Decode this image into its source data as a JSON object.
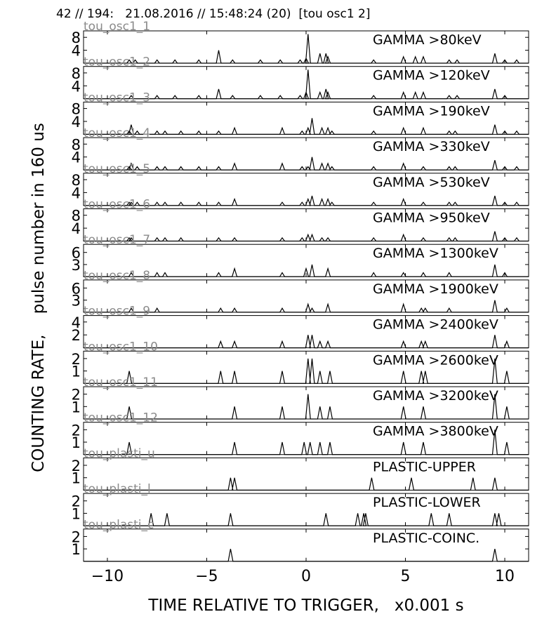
{
  "header": "42 // 194:   21.08.2016 // 15:48:24 (20)  [tou osc1 2]",
  "chart_data": {
    "type": "line",
    "xlabel": "TIME RELATIVE TO TRIGGER,   x0.001 s",
    "ylabel": "COUNTING RATE,    pulse number in 160 us",
    "xlim": [
      -11.2,
      11.2
    ],
    "xticks": [
      -10,
      -5,
      0,
      5,
      10
    ],
    "xtick_labels": [
      "−10",
      "−5",
      "0",
      "5",
      "10"
    ],
    "grid": false,
    "panels": [
      {
        "channel": "tou_osc1_1",
        "title": "GAMMA >80keV",
        "ylim": [
          0,
          10
        ],
        "yticks": [
          4,
          8
        ],
        "spikes": [
          [
            -8.9,
            1
          ],
          [
            -8.6,
            1
          ],
          [
            -7.5,
            1
          ],
          [
            -6.6,
            1
          ],
          [
            -5.4,
            1
          ],
          [
            -4.4,
            4
          ],
          [
            -3.7,
            1
          ],
          [
            -2.3,
            1
          ],
          [
            -1.3,
            1
          ],
          [
            -0.3,
            1
          ],
          [
            0,
            1.5
          ],
          [
            0.1,
            9
          ],
          [
            0.7,
            3
          ],
          [
            1,
            3
          ],
          [
            1.1,
            2
          ],
          [
            3.4,
            1
          ],
          [
            4.9,
            2
          ],
          [
            5.5,
            2
          ],
          [
            5.9,
            2
          ],
          [
            7.2,
            1
          ],
          [
            7.6,
            1
          ],
          [
            9.5,
            3
          ],
          [
            10,
            1
          ],
          [
            10.6,
            1
          ]
        ]
      },
      {
        "channel": "tou_osc1_2",
        "title": "GAMMA >120keV",
        "ylim": [
          0,
          10
        ],
        "yticks": [
          4,
          8
        ],
        "spikes": [
          [
            -8.8,
            1
          ],
          [
            -7.5,
            1
          ],
          [
            -6.6,
            1
          ],
          [
            -5.4,
            1
          ],
          [
            -4.4,
            3
          ],
          [
            -3.7,
            1
          ],
          [
            -2.3,
            1
          ],
          [
            -1.3,
            1
          ],
          [
            -0.3,
            1
          ],
          [
            0,
            2
          ],
          [
            0.1,
            9
          ],
          [
            0.7,
            2
          ],
          [
            1,
            3
          ],
          [
            1.1,
            2
          ],
          [
            3.4,
            1
          ],
          [
            4.9,
            2
          ],
          [
            5.5,
            2
          ],
          [
            5.9,
            2
          ],
          [
            7.2,
            1
          ],
          [
            7.6,
            1
          ],
          [
            9.5,
            3
          ],
          [
            10,
            1
          ]
        ]
      },
      {
        "channel": "tou_osc1_3",
        "title": "GAMMA >190keV",
        "ylim": [
          0,
          10
        ],
        "yticks": [
          4,
          8
        ],
        "spikes": [
          [
            -8.9,
            1
          ],
          [
            -8.8,
            3
          ],
          [
            -8.5,
            1
          ],
          [
            -7.5,
            1
          ],
          [
            -7.1,
            1
          ],
          [
            -6.3,
            1
          ],
          [
            -5.4,
            1
          ],
          [
            -4.4,
            1
          ],
          [
            -3.6,
            2
          ],
          [
            -1.2,
            2
          ],
          [
            -0.2,
            1
          ],
          [
            0.1,
            2
          ],
          [
            0.3,
            5
          ],
          [
            0.8,
            2
          ],
          [
            1.1,
            2
          ],
          [
            1.3,
            1
          ],
          [
            3.4,
            1
          ],
          [
            4.9,
            2
          ],
          [
            5.9,
            2
          ],
          [
            7.2,
            1
          ],
          [
            7.5,
            1
          ],
          [
            9.5,
            3
          ],
          [
            10,
            1
          ],
          [
            10.6,
            1
          ]
        ]
      },
      {
        "channel": "tou_osc1_4",
        "title": "GAMMA >330keV",
        "ylim": [
          0,
          10
        ],
        "yticks": [
          4,
          8
        ],
        "spikes": [
          [
            -8.9,
            1
          ],
          [
            -8.8,
            2
          ],
          [
            -8.5,
            1
          ],
          [
            -7.5,
            1
          ],
          [
            -7.1,
            1
          ],
          [
            -6.3,
            1
          ],
          [
            -5.4,
            1
          ],
          [
            -4.4,
            1
          ],
          [
            -3.6,
            2
          ],
          [
            -1.2,
            2
          ],
          [
            -0.2,
            1
          ],
          [
            0.1,
            1
          ],
          [
            0.3,
            4
          ],
          [
            0.8,
            2
          ],
          [
            1.1,
            2
          ],
          [
            1.3,
            1
          ],
          [
            3.4,
            1
          ],
          [
            4.9,
            2
          ],
          [
            5.9,
            1
          ],
          [
            7.2,
            1
          ],
          [
            7.5,
            1
          ],
          [
            9.5,
            3
          ],
          [
            10,
            1
          ],
          [
            10.6,
            1
          ]
        ]
      },
      {
        "channel": "tou_osc1_5",
        "title": "GAMMA >530keV",
        "ylim": [
          0,
          10
        ],
        "yticks": [
          4,
          8
        ],
        "spikes": [
          [
            -8.9,
            1
          ],
          [
            -8.8,
            1
          ],
          [
            -8.5,
            1
          ],
          [
            -7.5,
            1
          ],
          [
            -7.1,
            1
          ],
          [
            -6.3,
            1
          ],
          [
            -5.4,
            1
          ],
          [
            -4.4,
            1
          ],
          [
            -3.6,
            2
          ],
          [
            -1.2,
            1
          ],
          [
            -0.2,
            1
          ],
          [
            0.1,
            2
          ],
          [
            0.3,
            3
          ],
          [
            0.8,
            2
          ],
          [
            1.1,
            2
          ],
          [
            1.3,
            1
          ],
          [
            3.4,
            1
          ],
          [
            4.9,
            2
          ],
          [
            5.9,
            1
          ],
          [
            7.2,
            1
          ],
          [
            7.5,
            1
          ],
          [
            9.5,
            3
          ],
          [
            10,
            1
          ],
          [
            10.6,
            1
          ]
        ]
      },
      {
        "channel": "tou_osc1_6",
        "title": "GAMMA >950keV",
        "ylim": [
          0,
          10
        ],
        "yticks": [
          4,
          8
        ],
        "spikes": [
          [
            -8.9,
            1
          ],
          [
            -8.8,
            1
          ],
          [
            -7.5,
            1
          ],
          [
            -7.1,
            1
          ],
          [
            -6.3,
            1
          ],
          [
            -4.4,
            1
          ],
          [
            -3.6,
            1
          ],
          [
            -1.2,
            1
          ],
          [
            -0.2,
            1
          ],
          [
            0.1,
            2
          ],
          [
            0.3,
            2
          ],
          [
            0.8,
            1
          ],
          [
            1.1,
            1
          ],
          [
            3.4,
            1
          ],
          [
            4.9,
            2
          ],
          [
            5.9,
            1
          ],
          [
            7.2,
            1
          ],
          [
            7.5,
            1
          ],
          [
            9.5,
            3
          ],
          [
            10,
            1
          ],
          [
            10.6,
            1
          ]
        ]
      },
      {
        "channel": "tou_osc1_7",
        "title": "GAMMA >1300keV",
        "ylim": [
          0,
          8
        ],
        "yticks": [
          3,
          6
        ],
        "spikes": [
          [
            -8.8,
            1
          ],
          [
            -7.5,
            1
          ],
          [
            -7.1,
            1
          ],
          [
            -4.4,
            1
          ],
          [
            -3.6,
            2
          ],
          [
            -1.2,
            1
          ],
          [
            0,
            2
          ],
          [
            0.3,
            3
          ],
          [
            1.1,
            2
          ],
          [
            3.4,
            1
          ],
          [
            4.9,
            1
          ],
          [
            5.9,
            1
          ],
          [
            7.2,
            1
          ],
          [
            9.5,
            3
          ],
          [
            10,
            1
          ]
        ]
      },
      {
        "channel": "tou_osc1_8",
        "title": "GAMMA >1900keV",
        "ylim": [
          0,
          8
        ],
        "yticks": [
          3,
          6
        ],
        "spikes": [
          [
            -8.8,
            1
          ],
          [
            -7.5,
            1
          ],
          [
            -4.3,
            1
          ],
          [
            -3.6,
            1
          ],
          [
            -1.2,
            1
          ],
          [
            0.1,
            2
          ],
          [
            0.3,
            1
          ],
          [
            1.1,
            2
          ],
          [
            4.9,
            2
          ],
          [
            5.8,
            1
          ],
          [
            6,
            1
          ],
          [
            7.2,
            1
          ],
          [
            9.5,
            3
          ],
          [
            10.1,
            1
          ]
        ]
      },
      {
        "channel": "tou_osc1_9",
        "title": "GAMMA >2400keV",
        "ylim": [
          0,
          5
        ],
        "yticks": [
          2,
          4
        ],
        "spikes": [
          [
            -4.3,
            1
          ],
          [
            -3.6,
            1
          ],
          [
            -1.2,
            1
          ],
          [
            0.1,
            2
          ],
          [
            0.3,
            2
          ],
          [
            0.7,
            1
          ],
          [
            1.1,
            1
          ],
          [
            4.9,
            1
          ],
          [
            5.8,
            1
          ],
          [
            6,
            1
          ],
          [
            9.5,
            2
          ],
          [
            10.1,
            1
          ]
        ]
      },
      {
        "channel": "tou_osc1_10",
        "title": "GAMMA >2600keV",
        "ylim": [
          0,
          2.6
        ],
        "yticks": [
          1,
          2
        ],
        "spikes": [
          [
            -8.9,
            1
          ],
          [
            -4.3,
            1
          ],
          [
            -3.6,
            1
          ],
          [
            -1.2,
            1
          ],
          [
            0.1,
            2
          ],
          [
            0.3,
            2
          ],
          [
            0.7,
            1
          ],
          [
            1.2,
            1
          ],
          [
            4.9,
            1
          ],
          [
            5.8,
            1
          ],
          [
            6,
            1
          ],
          [
            9.5,
            2
          ],
          [
            10.1,
            1
          ]
        ]
      },
      {
        "channel": "tou_osc1_11",
        "title": "GAMMA >3200keV",
        "ylim": [
          0,
          2.6
        ],
        "yticks": [
          1,
          2
        ],
        "spikes": [
          [
            -8.9,
            1
          ],
          [
            -3.6,
            1
          ],
          [
            -1.2,
            1
          ],
          [
            0.1,
            2
          ],
          [
            0.7,
            1
          ],
          [
            1.2,
            1
          ],
          [
            4.9,
            1
          ],
          [
            5.9,
            1
          ],
          [
            9.5,
            2
          ],
          [
            10.1,
            1
          ]
        ]
      },
      {
        "channel": "tou_osc1_12",
        "title": "GAMMA >3800keV",
        "ylim": [
          0,
          2.6
        ],
        "yticks": [
          1,
          2
        ],
        "spikes": [
          [
            -8.9,
            1
          ],
          [
            -3.6,
            1
          ],
          [
            -1.2,
            1
          ],
          [
            -0.1,
            1
          ],
          [
            0.2,
            1
          ],
          [
            0.7,
            1
          ],
          [
            1.2,
            1
          ],
          [
            4.9,
            1
          ],
          [
            5.9,
            1
          ],
          [
            9.5,
            2
          ],
          [
            10.1,
            1
          ]
        ]
      },
      {
        "channel": "tou_plasti_u",
        "title": "PLASTIC-UPPER",
        "ylim": [
          0,
          2.6
        ],
        "yticks": [
          1,
          2
        ],
        "spikes": [
          [
            -3.8,
            1
          ],
          [
            -3.6,
            1
          ],
          [
            3.3,
            1
          ],
          [
            5.3,
            1
          ],
          [
            8.4,
            1
          ],
          [
            9.5,
            1
          ]
        ]
      },
      {
        "channel": "tou_plasti_l",
        "title": "PLASTIC-LOWER",
        "ylim": [
          0,
          2.6
        ],
        "yticks": [
          1,
          2
        ],
        "spikes": [
          [
            -7.8,
            1
          ],
          [
            -7.0,
            1
          ],
          [
            -3.8,
            1
          ],
          [
            1.0,
            1
          ],
          [
            2.6,
            1
          ],
          [
            2.9,
            1
          ],
          [
            3.0,
            1
          ],
          [
            6.3,
            1
          ],
          [
            7.2,
            1
          ],
          [
            9.5,
            1
          ],
          [
            9.7,
            1
          ]
        ]
      },
      {
        "channel": "tou_plasti_c",
        "title": "PLASTIC-COINC.",
        "ylim": [
          0,
          2.6
        ],
        "yticks": [
          1,
          2
        ],
        "spikes": [
          [
            -3.8,
            1
          ],
          [
            9.5,
            1
          ]
        ]
      }
    ]
  }
}
